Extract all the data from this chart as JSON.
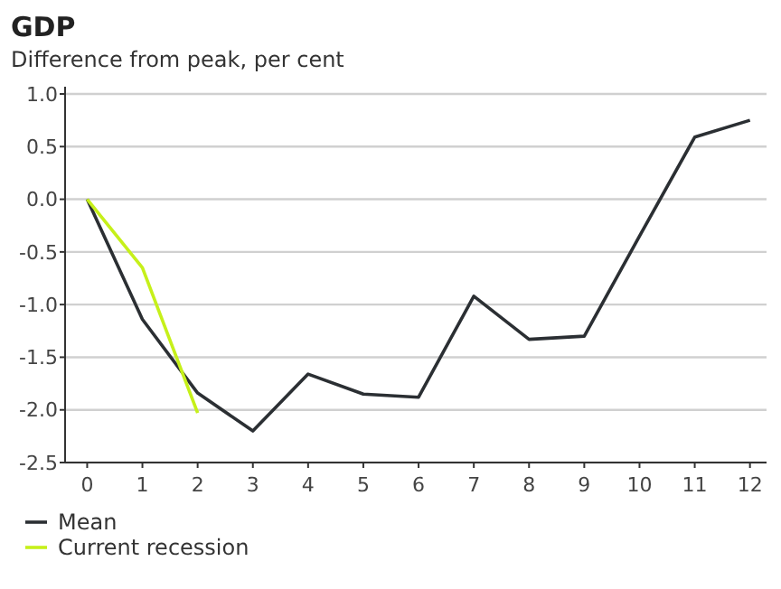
{
  "chart_data": {
    "type": "line",
    "title": "GDP",
    "subtitle": "Difference from peak, per cent",
    "x": [
      0,
      1,
      2,
      3,
      4,
      5,
      6,
      7,
      8,
      9,
      10,
      11,
      12
    ],
    "xlim": [
      -0.4,
      12.3
    ],
    "xticks": [
      0,
      1,
      2,
      3,
      4,
      5,
      6,
      7,
      8,
      9,
      10,
      11,
      12
    ],
    "ylim": [
      -2.5,
      1.0
    ],
    "yticks": [
      {
        "value": 1.0,
        "label": "1.0"
      },
      {
        "value": 0.5,
        "label": "0.5"
      },
      {
        "value": 0,
        "label": "0.0"
      },
      {
        "value": -0.5,
        "label": "-0.5"
      },
      {
        "value": -1.0,
        "label": "-1.0"
      },
      {
        "value": -1.5,
        "label": "-1.5"
      },
      {
        "value": -2.0,
        "label": "-2.0"
      },
      {
        "value": -2.5,
        "label": "-2.5"
      }
    ],
    "grid": "y",
    "legend": "bottom left",
    "marker": "none",
    "line_style": "solid",
    "series": [
      {
        "name": "Mean",
        "color": "#2b2f33",
        "values": [
          0,
          -1.14,
          -1.84,
          -2.2,
          -1.66,
          -1.85,
          -1.88,
          -0.92,
          -1.33,
          -1.3,
          -0.35,
          0.59,
          0.75
        ]
      },
      {
        "name": "Current recession",
        "color": "#c6f01a",
        "x": [
          0,
          1,
          2
        ],
        "values": [
          0,
          -0.65,
          -2.03
        ]
      }
    ]
  }
}
